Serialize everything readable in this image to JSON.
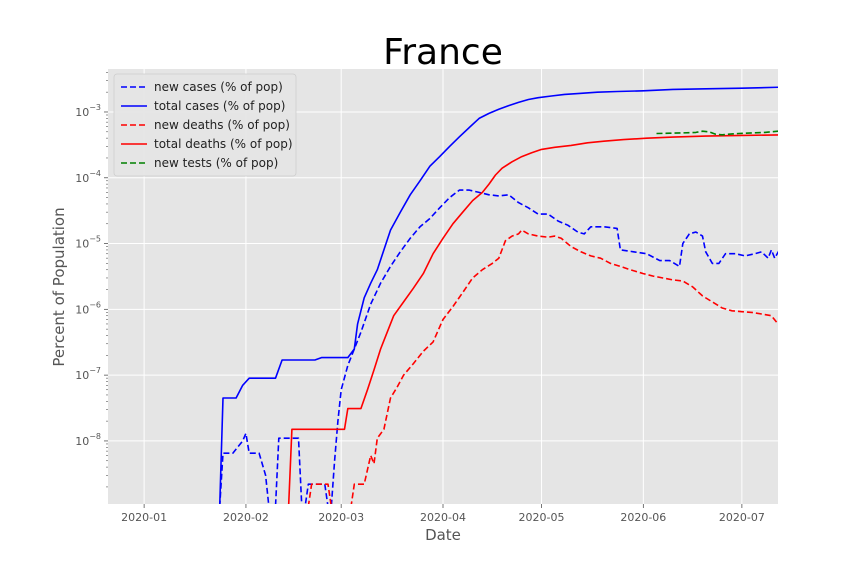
{
  "chart_data": {
    "type": "line",
    "title": "France",
    "xlabel": "Date",
    "ylabel": "Percent of Population",
    "yscale": "log",
    "ylim": [
      1.1e-09,
      0.0045
    ],
    "xlim": [
      "2019-12-21",
      "2020-07-12"
    ],
    "grid": true,
    "legend_position": "top-left",
    "x_ticks": [
      "2020-01-01",
      "2020-02-01",
      "2020-03-01",
      "2020-04-01",
      "2020-05-01",
      "2020-06-01",
      "2020-07-01"
    ],
    "x_tick_labels": [
      "2020-01",
      "2020-02",
      "2020-03",
      "2020-04",
      "2020-05",
      "2020-06",
      "2020-07"
    ],
    "y_tick_labels": [
      {
        "value": 1e-08,
        "base": "10",
        "exp": "−8"
      },
      {
        "value": 1e-07,
        "base": "10",
        "exp": "−7"
      },
      {
        "value": 1e-06,
        "base": "10",
        "exp": "−6"
      },
      {
        "value": 1e-05,
        "base": "10",
        "exp": "−5"
      },
      {
        "value": 0.0001,
        "base": "10",
        "exp": "−4"
      },
      {
        "value": 0.001,
        "base": "10",
        "exp": "−3"
      }
    ],
    "series": [
      {
        "name": "new cases (% of pop)",
        "color": "#0000ff",
        "dash": "dashed",
        "points": [
          [
            "2020-01-24",
            1e-09
          ],
          [
            "2020-01-25",
            6.5e-09
          ],
          [
            "2020-01-28",
            6.5e-09
          ],
          [
            "2020-01-31",
            1e-08
          ],
          [
            "2020-02-01",
            1.3e-08
          ],
          [
            "2020-02-02",
            6.5e-09
          ],
          [
            "2020-02-05",
            6.5e-09
          ],
          [
            "2020-02-07",
            3e-09
          ],
          [
            "2020-02-08",
            1e-09
          ],
          [
            "2020-02-10",
            1e-09
          ],
          [
            "2020-02-11",
            1.1e-08
          ],
          [
            "2020-02-17",
            1.1e-08
          ],
          [
            "2020-02-18",
            1e-09
          ],
          [
            "2020-02-19",
            1e-09
          ],
          [
            "2020-02-20",
            2.2e-09
          ],
          [
            "2020-02-25",
            2.2e-09
          ],
          [
            "2020-02-26",
            1e-09
          ],
          [
            "2020-02-27",
            1e-09
          ],
          [
            "2020-02-28",
            5e-09
          ],
          [
            "2020-02-29",
            2e-08
          ],
          [
            "2020-03-01",
            6e-08
          ],
          [
            "2020-03-03",
            1.4e-07
          ],
          [
            "2020-03-05",
            2.5e-07
          ],
          [
            "2020-03-07",
            4.5e-07
          ],
          [
            "2020-03-10",
            1.2e-06
          ],
          [
            "2020-03-13",
            2.5e-06
          ],
          [
            "2020-03-16",
            4.5e-06
          ],
          [
            "2020-03-19",
            7.5e-06
          ],
          [
            "2020-03-22",
            1.2e-05
          ],
          [
            "2020-03-25",
            1.8e-05
          ],
          [
            "2020-03-28",
            2.4e-05
          ],
          [
            "2020-03-31",
            3.5e-05
          ],
          [
            "2020-04-03",
            5e-05
          ],
          [
            "2020-04-06",
            6.5e-05
          ],
          [
            "2020-04-09",
            6.5e-05
          ],
          [
            "2020-04-12",
            6e-05
          ],
          [
            "2020-04-15",
            5.5e-05
          ],
          [
            "2020-04-18",
            5.3e-05
          ],
          [
            "2020-04-21",
            5.5e-05
          ],
          [
            "2020-04-24",
            4.2e-05
          ],
          [
            "2020-04-27",
            3.5e-05
          ],
          [
            "2020-04-30",
            2.8e-05
          ],
          [
            "2020-05-03",
            2.8e-05
          ],
          [
            "2020-05-06",
            2.2e-05
          ],
          [
            "2020-05-09",
            1.9e-05
          ],
          [
            "2020-05-12",
            1.5e-05
          ],
          [
            "2020-05-14",
            1.4e-05
          ],
          [
            "2020-05-16",
            1.8e-05
          ],
          [
            "2020-05-20",
            1.8e-05
          ],
          [
            "2020-05-24",
            1.7e-05
          ],
          [
            "2020-05-25",
            8e-06
          ],
          [
            "2020-05-29",
            7.5e-06
          ],
          [
            "2020-06-02",
            7e-06
          ],
          [
            "2020-06-06",
            5.5e-06
          ],
          [
            "2020-06-09",
            5.5e-06
          ],
          [
            "2020-06-12",
            4.5e-06
          ],
          [
            "2020-06-13",
            1e-05
          ],
          [
            "2020-06-15",
            1.4e-05
          ],
          [
            "2020-06-17",
            1.5e-05
          ],
          [
            "2020-06-19",
            1.3e-05
          ],
          [
            "2020-06-20",
            7.5e-06
          ],
          [
            "2020-06-22",
            5e-06
          ],
          [
            "2020-06-24",
            5e-06
          ],
          [
            "2020-06-26",
            7e-06
          ],
          [
            "2020-06-29",
            7e-06
          ],
          [
            "2020-07-02",
            6.5e-06
          ],
          [
            "2020-07-05",
            7e-06
          ],
          [
            "2020-07-07",
            7.5e-06
          ],
          [
            "2020-07-09",
            6e-06
          ],
          [
            "2020-07-10",
            8e-06
          ],
          [
            "2020-07-11",
            6e-06
          ],
          [
            "2020-07-13",
            9e-06
          ],
          [
            "2020-07-15",
            1.1e-05
          ]
        ]
      },
      {
        "name": "total cases (% of pop)",
        "color": "#0000ff",
        "dash": "solid",
        "points": [
          [
            "2020-01-24",
            1e-09
          ],
          [
            "2020-01-25",
            4.5e-08
          ],
          [
            "2020-01-29",
            4.5e-08
          ],
          [
            "2020-01-31",
            7e-08
          ],
          [
            "2020-02-02",
            9e-08
          ],
          [
            "2020-02-10",
            9e-08
          ],
          [
            "2020-02-12",
            1.7e-07
          ],
          [
            "2020-02-22",
            1.7e-07
          ],
          [
            "2020-02-24",
            1.85e-07
          ],
          [
            "2020-03-03",
            1.85e-07
          ],
          [
            "2020-03-05",
            2.5e-07
          ],
          [
            "2020-03-06",
            6e-07
          ],
          [
            "2020-03-08",
            1.5e-06
          ],
          [
            "2020-03-10",
            2.5e-06
          ],
          [
            "2020-03-12",
            4e-06
          ],
          [
            "2020-03-14",
            8e-06
          ],
          [
            "2020-03-16",
            1.6e-05
          ],
          [
            "2020-03-19",
            3e-05
          ],
          [
            "2020-03-22",
            5.5e-05
          ],
          [
            "2020-03-25",
            9e-05
          ],
          [
            "2020-03-28",
            0.00015
          ],
          [
            "2020-03-31",
            0.00021
          ],
          [
            "2020-04-03",
            0.0003
          ],
          [
            "2020-04-06",
            0.00042
          ],
          [
            "2020-04-09",
            0.00058
          ],
          [
            "2020-04-12",
            0.0008
          ],
          [
            "2020-04-15",
            0.00095
          ],
          [
            "2020-04-18",
            0.0011
          ],
          [
            "2020-04-21",
            0.00125
          ],
          [
            "2020-04-24",
            0.0014
          ],
          [
            "2020-04-27",
            0.00155
          ],
          [
            "2020-04-30",
            0.00165
          ],
          [
            "2020-05-04",
            0.00175
          ],
          [
            "2020-05-08",
            0.00185
          ],
          [
            "2020-05-12",
            0.0019
          ],
          [
            "2020-05-18",
            0.002
          ],
          [
            "2020-05-24",
            0.00205
          ],
          [
            "2020-06-01",
            0.0021
          ],
          [
            "2020-06-10",
            0.0022
          ],
          [
            "2020-06-20",
            0.00225
          ],
          [
            "2020-07-01",
            0.0023
          ],
          [
            "2020-07-15",
            0.0024
          ]
        ]
      },
      {
        "name": "new deaths (% of pop)",
        "color": "#ff0000",
        "dash": "dashed",
        "points": [
          [
            "2020-02-20",
            1e-09
          ],
          [
            "2020-02-21",
            2.2e-09
          ],
          [
            "2020-02-26",
            2.2e-09
          ],
          [
            "2020-02-27",
            1e-09
          ],
          [
            "2020-03-04",
            1e-09
          ],
          [
            "2020-03-05",
            2.2e-09
          ],
          [
            "2020-03-08",
            2.2e-09
          ],
          [
            "2020-03-10",
            6e-09
          ],
          [
            "2020-03-11",
            4.5e-09
          ],
          [
            "2020-03-12",
            1.1e-08
          ],
          [
            "2020-03-14",
            1.5e-08
          ],
          [
            "2020-03-16",
            4.5e-08
          ],
          [
            "2020-03-18",
            6.5e-08
          ],
          [
            "2020-03-20",
            1e-07
          ],
          [
            "2020-03-23",
            1.5e-07
          ],
          [
            "2020-03-26",
            2.3e-07
          ],
          [
            "2020-03-29",
            3.2e-07
          ],
          [
            "2020-04-01",
            7e-07
          ],
          [
            "2020-04-04",
            1.1e-06
          ],
          [
            "2020-04-07",
            1.8e-06
          ],
          [
            "2020-04-10",
            3e-06
          ],
          [
            "2020-04-13",
            4e-06
          ],
          [
            "2020-04-16",
            5e-06
          ],
          [
            "2020-04-18",
            6e-06
          ],
          [
            "2020-04-20",
            1.1e-05
          ],
          [
            "2020-04-22",
            1.3e-05
          ],
          [
            "2020-04-24",
            1.4e-05
          ],
          [
            "2020-04-25",
            1.6e-05
          ],
          [
            "2020-04-27",
            1.4e-05
          ],
          [
            "2020-04-30",
            1.3e-05
          ],
          [
            "2020-05-03",
            1.25e-05
          ],
          [
            "2020-05-05",
            1.3e-05
          ],
          [
            "2020-05-07",
            1.2e-05
          ],
          [
            "2020-05-10",
            9e-06
          ],
          [
            "2020-05-13",
            7.5e-06
          ],
          [
            "2020-05-16",
            6.5e-06
          ],
          [
            "2020-05-19",
            6e-06
          ],
          [
            "2020-05-22",
            5e-06
          ],
          [
            "2020-05-25",
            4.5e-06
          ],
          [
            "2020-05-28",
            4e-06
          ],
          [
            "2020-06-01",
            3.5e-06
          ],
          [
            "2020-06-04",
            3.2e-06
          ],
          [
            "2020-06-07",
            3e-06
          ],
          [
            "2020-06-10",
            2.8e-06
          ],
          [
            "2020-06-13",
            2.7e-06
          ],
          [
            "2020-06-16",
            2.2e-06
          ],
          [
            "2020-06-19",
            1.6e-06
          ],
          [
            "2020-06-22",
            1.3e-06
          ],
          [
            "2020-06-25",
            1.05e-06
          ],
          [
            "2020-06-28",
            9.5e-07
          ],
          [
            "2020-07-01",
            9.2e-07
          ],
          [
            "2020-07-04",
            9e-07
          ],
          [
            "2020-07-07",
            8.5e-07
          ],
          [
            "2020-07-10",
            8e-07
          ],
          [
            "2020-07-12",
            6e-07
          ],
          [
            "2020-07-14",
            5.5e-07
          ]
        ]
      },
      {
        "name": "total deaths (% of pop)",
        "color": "#ff0000",
        "dash": "solid",
        "points": [
          [
            "2020-02-14",
            1e-09
          ],
          [
            "2020-02-15",
            1.5e-08
          ],
          [
            "2020-03-02",
            1.5e-08
          ],
          [
            "2020-03-03",
            3.1e-08
          ],
          [
            "2020-03-07",
            3.1e-08
          ],
          [
            "2020-03-09",
            6e-08
          ],
          [
            "2020-03-11",
            1.2e-07
          ],
          [
            "2020-03-13",
            2.5e-07
          ],
          [
            "2020-03-15",
            4.5e-07
          ],
          [
            "2020-03-17",
            8e-07
          ],
          [
            "2020-03-20",
            1.3e-06
          ],
          [
            "2020-03-23",
            2.1e-06
          ],
          [
            "2020-03-26",
            3.5e-06
          ],
          [
            "2020-03-29",
            7e-06
          ],
          [
            "2020-04-01",
            1.2e-05
          ],
          [
            "2020-04-04",
            2e-05
          ],
          [
            "2020-04-07",
            3e-05
          ],
          [
            "2020-04-10",
            4.5e-05
          ],
          [
            "2020-04-13",
            6e-05
          ],
          [
            "2020-04-15",
            8e-05
          ],
          [
            "2020-04-17",
            0.00011
          ],
          [
            "2020-04-19",
            0.00014
          ],
          [
            "2020-04-22",
            0.000175
          ],
          [
            "2020-04-25",
            0.00021
          ],
          [
            "2020-04-28",
            0.00024
          ],
          [
            "2020-05-01",
            0.00027
          ],
          [
            "2020-05-05",
            0.00029
          ],
          [
            "2020-05-10",
            0.00031
          ],
          [
            "2020-05-15",
            0.00034
          ],
          [
            "2020-05-20",
            0.00036
          ],
          [
            "2020-05-26",
            0.00038
          ],
          [
            "2020-06-02",
            0.0004
          ],
          [
            "2020-06-10",
            0.000415
          ],
          [
            "2020-06-20",
            0.00043
          ],
          [
            "2020-07-01",
            0.00044
          ],
          [
            "2020-07-15",
            0.00045
          ]
        ]
      },
      {
        "name": "new tests (% of pop)",
        "color": "#008000",
        "dash": "dashed",
        "points": [
          [
            "2020-06-05",
            0.00047
          ],
          [
            "2020-06-09",
            0.000475
          ],
          [
            "2020-06-13",
            0.00048
          ],
          [
            "2020-06-17",
            0.00049
          ],
          [
            "2020-06-19",
            0.00051
          ],
          [
            "2020-06-21",
            0.0005
          ],
          [
            "2020-06-23",
            0.00046
          ],
          [
            "2020-06-25",
            0.00045
          ],
          [
            "2020-06-27",
            0.00046
          ],
          [
            "2020-06-30",
            0.00047
          ],
          [
            "2020-07-04",
            0.00048
          ],
          [
            "2020-07-08",
            0.00049
          ],
          [
            "2020-07-12",
            0.00051
          ],
          [
            "2020-07-15",
            0.00051
          ]
        ]
      }
    ]
  }
}
